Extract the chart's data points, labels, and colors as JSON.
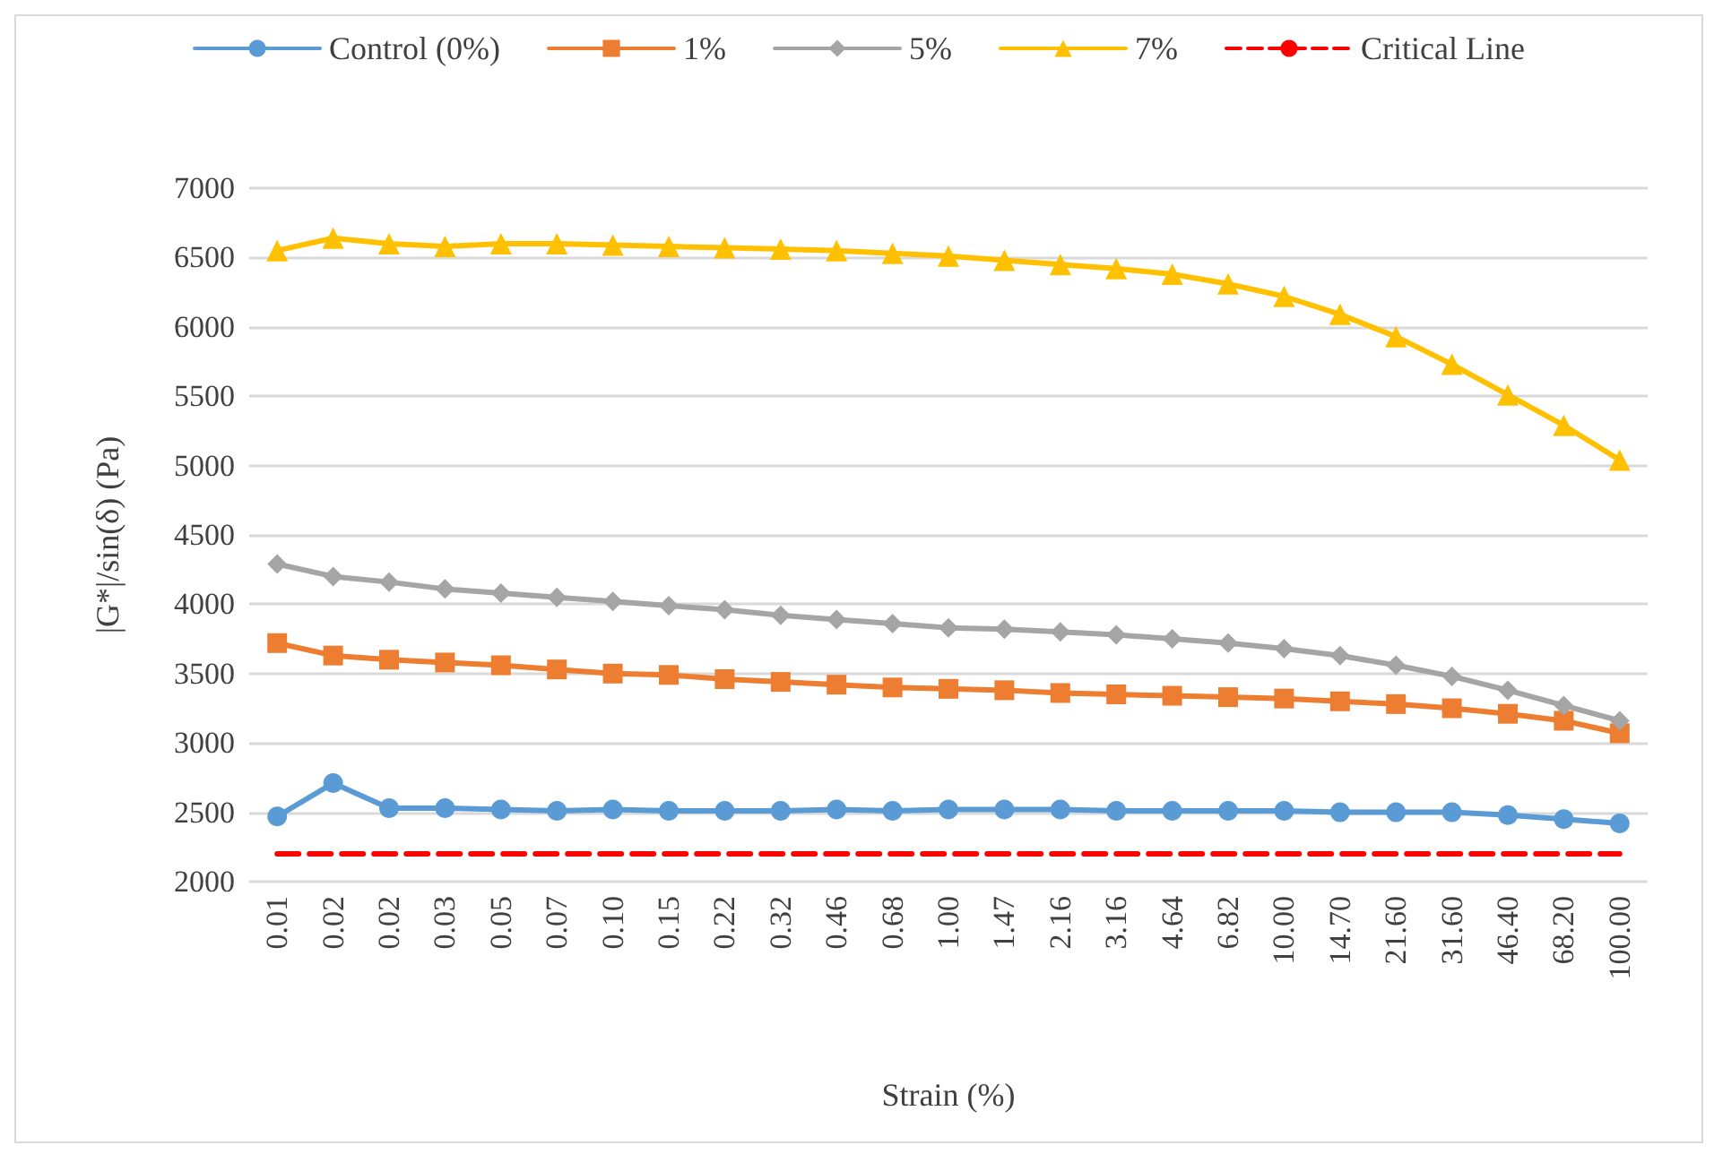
{
  "chart_data": {
    "type": "line",
    "xlabel": "Strain (%)",
    "ylabel": "|G*|/sin(δ) (Pa)",
    "categories": [
      "0.01",
      "0.02",
      "0.02",
      "0.03",
      "0.05",
      "0.07",
      "0.10",
      "0.15",
      "0.22",
      "0.32",
      "0.46",
      "0.68",
      "1.00",
      "1.47",
      "2.16",
      "3.16",
      "4.64",
      "6.82",
      "10.00",
      "14.70",
      "21.60",
      "31.60",
      "46.40",
      "68.20",
      "100.00"
    ],
    "series": [
      {
        "name": "Control (0%)",
        "color": "#5b9bd5",
        "marker": "circle",
        "values": [
          2470,
          2710,
          2530,
          2530,
          2520,
          2510,
          2520,
          2510,
          2510,
          2510,
          2520,
          2510,
          2520,
          2520,
          2520,
          2510,
          2510,
          2510,
          2510,
          2500,
          2500,
          2500,
          2480,
          2450,
          2420
        ]
      },
      {
        "name": "1%",
        "color": "#ed7d31",
        "marker": "square",
        "values": [
          3720,
          3630,
          3600,
          3580,
          3560,
          3530,
          3500,
          3490,
          3460,
          3440,
          3420,
          3400,
          3390,
          3380,
          3360,
          3350,
          3340,
          3330,
          3320,
          3300,
          3280,
          3250,
          3210,
          3160,
          3070
        ]
      },
      {
        "name": "5%",
        "color": "#a5a5a5",
        "marker": "diamond",
        "values": [
          4290,
          4200,
          4160,
          4110,
          4080,
          4050,
          4020,
          3990,
          3960,
          3920,
          3890,
          3860,
          3830,
          3820,
          3800,
          3780,
          3750,
          3720,
          3680,
          3630,
          3560,
          3480,
          3380,
          3270,
          3160
        ]
      },
      {
        "name": "7%",
        "color": "#ffc000",
        "marker": "triangle",
        "values": [
          6550,
          6640,
          6600,
          6580,
          6600,
          6600,
          6590,
          6580,
          6570,
          6560,
          6550,
          6530,
          6510,
          6480,
          6450,
          6420,
          6380,
          6310,
          6220,
          6090,
          5930,
          5730,
          5510,
          5290,
          5040
        ]
      },
      {
        "name": "Critical Line",
        "color": "#ff0000",
        "marker": "none",
        "line_style": "dashed",
        "values": [
          2200,
          2200,
          2200,
          2200,
          2200,
          2200,
          2200,
          2200,
          2200,
          2200,
          2200,
          2200,
          2200,
          2200,
          2200,
          2200,
          2200,
          2200,
          2200,
          2200,
          2200,
          2200,
          2200,
          2200,
          2200
        ]
      }
    ],
    "ylim": [
      2000,
      7000
    ],
    "yticks": [
      2000,
      2500,
      3000,
      3500,
      4000,
      4500,
      5000,
      5500,
      6000,
      6500,
      7000
    ],
    "grid": "y",
    "legend": "top",
    "line_style": "solid"
  }
}
